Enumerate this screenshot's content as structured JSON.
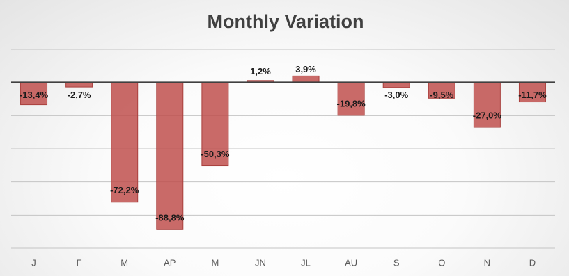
{
  "chart_data": {
    "type": "bar",
    "title": "Monthly Variation",
    "categories": [
      "J",
      "F",
      "M",
      "AP",
      "M",
      "JN",
      "JL",
      "AU",
      "S",
      "O",
      "N",
      "D"
    ],
    "values": [
      -13.4,
      -2.7,
      -72.2,
      -88.8,
      -50.3,
      1.2,
      3.9,
      -19.8,
      -3.0,
      -9.5,
      -27.0,
      -11.7
    ],
    "value_labels": [
      "-13,4%",
      "-2,7%",
      "-72,2%",
      "-88,8%",
      "-50,3%",
      "1,2%",
      "3,9%",
      "-19,8%",
      "-3,0%",
      "-9,5%",
      "-27,0%",
      "-11,7%"
    ],
    "color": "#c0504d",
    "ylim": [
      -100,
      20
    ],
    "yticks": [
      -100,
      -80,
      -60,
      -40,
      -20,
      0,
      20
    ],
    "grid": true
  }
}
